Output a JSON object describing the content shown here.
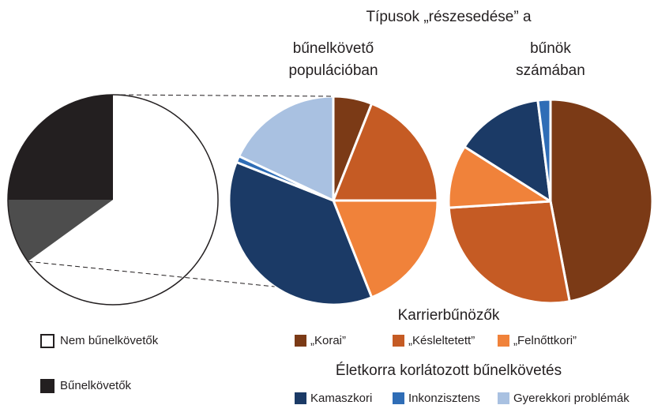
{
  "chart_data": {
    "type": "pie",
    "title": "Típusok „részesedése” a",
    "left_pie": {
      "categories": [
        "Nem bűnelkövetők",
        null,
        "Bűnelkövetők"
      ],
      "values": [
        65,
        10,
        25
      ],
      "colors": [
        "#ffffff",
        "#4d4d4d",
        "#231f20"
      ]
    },
    "groups": [
      {
        "title": "Karrierbűnözők",
        "categories": [
          "„Korai”",
          "„Késleltetett”",
          "„Felnőttkori”"
        ],
        "colors": [
          "#7b3a16",
          "#c55b24",
          "#f0823a"
        ]
      },
      {
        "title": "Életkorra korlátozott bűnelkövetés",
        "categories": [
          "Kamaszkori",
          "Inkonzisztens",
          "Gyerekkori problémák"
        ],
        "colors": [
          "#1b3a66",
          "#2f6db6",
          "#a9c1e1"
        ]
      }
    ],
    "pies": [
      {
        "label": [
          "bűnelkövető",
          "populációban"
        ],
        "values": [
          [
            6,
            19,
            19
          ],
          [
            37,
            1,
            18
          ]
        ]
      },
      {
        "label": [
          "bűnök",
          "számában"
        ],
        "values": [
          [
            47,
            27,
            10
          ],
          [
            14,
            2,
            0
          ]
        ]
      }
    ]
  }
}
